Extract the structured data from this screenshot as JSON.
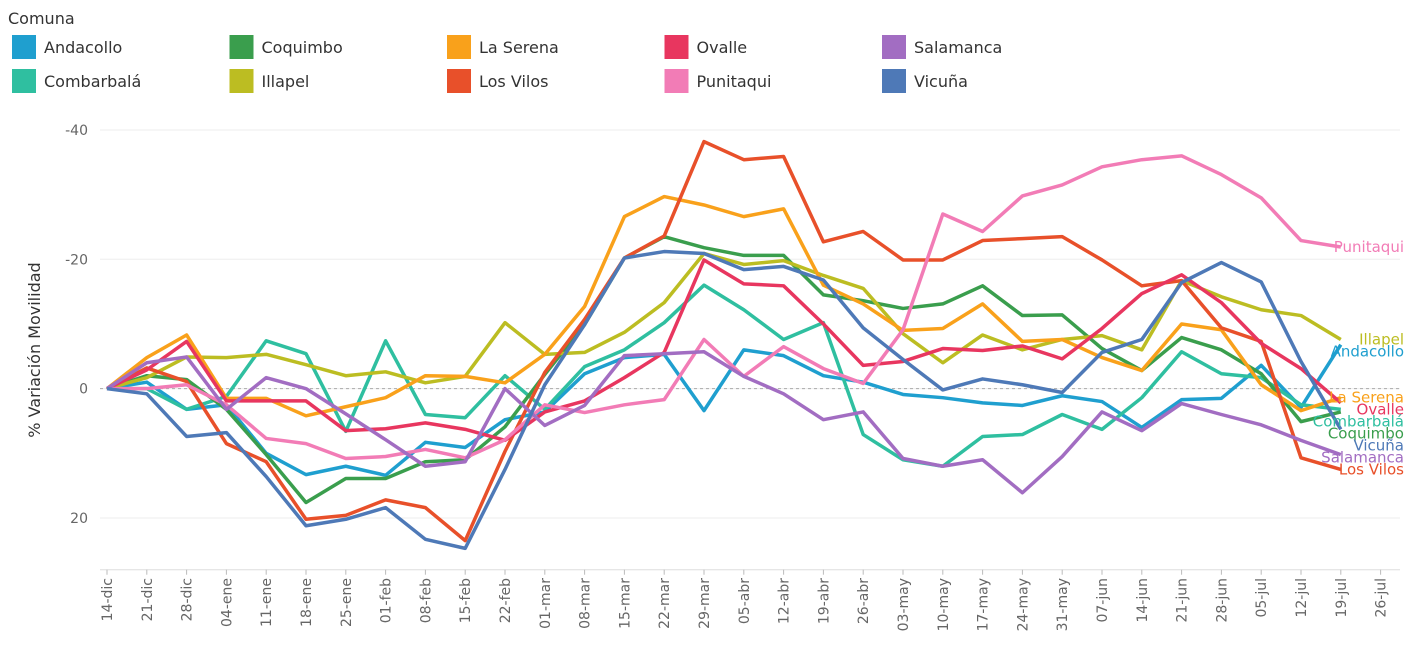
{
  "chart_data": {
    "type": "line",
    "legend_title": "Comuna",
    "y_label": "% Variación Movilidad",
    "ylim": [
      -41,
      28
    ],
    "y_inverted": true,
    "yticks": [
      -40,
      -20,
      0,
      20
    ],
    "grid": true,
    "zero_line": true,
    "end_labels": true,
    "categories": [
      "14-dic",
      "21-dic",
      "28-dic",
      "04-ene",
      "11-ene",
      "18-ene",
      "25-ene",
      "01-feb",
      "08-feb",
      "15-feb",
      "22-feb",
      "01-mar",
      "08-mar",
      "15-mar",
      "22-mar",
      "29-mar",
      "05-abr",
      "12-abr",
      "19-abr",
      "26-abr",
      "03-may",
      "10-may",
      "17-may",
      "24-may",
      "31-may",
      "07-jun",
      "14-jun",
      "21-jun",
      "28-jun",
      "05-jul",
      "12-jul",
      "19-jul",
      "26-jul"
    ],
    "series": [
      {
        "name": "Andacollo",
        "color": "#1f9fcf",
        "values": [
          0,
          -1,
          3.2,
          2.5,
          10,
          13.3,
          12,
          13.4,
          8.3,
          9.1,
          4.8,
          3.6,
          -2.3,
          -4.8,
          -5.3,
          3.4,
          -6,
          -5.1,
          -2,
          -1,
          0.9,
          1.4,
          2.2,
          2.6,
          1.1,
          2,
          6,
          1.7,
          1.5,
          -3.6,
          2.9,
          -6.8,
          null
        ]
      },
      {
        "name": "Combarbalá",
        "color": "#2fbfa0",
        "values": [
          0,
          0,
          3.2,
          1.2,
          -7.4,
          -5.4,
          6.6,
          -7.4,
          4,
          4.5,
          -2,
          3.2,
          -3.4,
          -6,
          -10.2,
          -16,
          -12.2,
          -7.6,
          -10.2,
          7.1,
          11,
          12,
          7.4,
          7.1,
          4,
          6.3,
          1.4,
          -5.7,
          -2.3,
          -1.7,
          2.5,
          3.2,
          null
        ]
      },
      {
        "name": "Coquimbo",
        "color": "#3a9e4d",
        "values": [
          0,
          -2,
          -1.4,
          3.2,
          10.2,
          17.6,
          13.9,
          13.9,
          11.3,
          11,
          5.9,
          -2.2,
          -9.9,
          -20.2,
          -23.5,
          -21.8,
          -20.6,
          -20.6,
          -14.5,
          -13.6,
          -12.4,
          -13.1,
          -15.9,
          -11.3,
          -11.4,
          -6.2,
          -2.8,
          -7.9,
          -6,
          -2.3,
          5.1,
          3.6,
          null
        ]
      },
      {
        "name": "Illapel",
        "color": "#bcbd22",
        "values": [
          0,
          -1.7,
          -4.9,
          -4.8,
          -5.3,
          -3.7,
          -2,
          -2.6,
          -0.9,
          -1.9,
          -10.2,
          -5.3,
          -5.6,
          -8.7,
          -13.3,
          -20.9,
          -19.2,
          -19.8,
          -17.5,
          -15.5,
          -8.5,
          -4,
          -8.3,
          -6,
          -7.6,
          -8.2,
          -6,
          -16.7,
          -14.2,
          -12.2,
          -11.3,
          -7.6,
          null
        ]
      },
      {
        "name": "La Serena",
        "color": "#f9a11b",
        "values": [
          0,
          -4.8,
          -8.3,
          1.5,
          1.5,
          4.2,
          2.8,
          1.4,
          -2,
          -1.9,
          -0.9,
          -5.3,
          -12.7,
          -26.6,
          -29.7,
          -28.4,
          -26.6,
          -27.8,
          -16,
          -13.1,
          -9,
          -9.3,
          -13.1,
          -7.3,
          -7.6,
          -4.8,
          -2.8,
          -10,
          -9.1,
          -0.6,
          3.4,
          1.4,
          null
        ]
      },
      {
        "name": "Los Vilos",
        "color": "#e8502a",
        "values": [
          0,
          -3.2,
          -1.1,
          8.5,
          11.3,
          20.2,
          19.6,
          17.2,
          18.4,
          23.5,
          9.7,
          -2.5,
          -10.7,
          -20.2,
          -23.6,
          -38.2,
          -35.4,
          -35.9,
          -22.7,
          -24.3,
          -19.9,
          -19.9,
          -22.9,
          -23.2,
          -23.5,
          -19.9,
          -15.9,
          -16.7,
          -9.4,
          -7.3,
          10.7,
          12.5,
          null
        ]
      },
      {
        "name": "Ovalle",
        "color": "#e8365f",
        "values": [
          0,
          -2.9,
          -7.3,
          1.9,
          1.9,
          1.9,
          6.5,
          6.2,
          5.3,
          6.3,
          8,
          3.6,
          1.9,
          -1.7,
          -5.6,
          -19.9,
          -16.2,
          -15.9,
          -10,
          -3.6,
          -4.2,
          -6.2,
          -5.9,
          -6.6,
          -4.6,
          -9.3,
          -14.7,
          -17.6,
          -13.3,
          -7,
          -3.1,
          2.2,
          null
        ]
      },
      {
        "name": "Punitaqui",
        "color": "#f27cb6",
        "values": [
          0,
          0,
          -0.6,
          2.5,
          7.7,
          8.5,
          10.8,
          10.5,
          9.4,
          10.7,
          7.9,
          2.5,
          3.7,
          2.5,
          1.7,
          -7.6,
          -1.9,
          -6.5,
          -3.1,
          -0.8,
          -9.1,
          -27,
          -24.3,
          -29.8,
          -31.5,
          -34.3,
          -35.4,
          -36,
          -33.1,
          -29.5,
          -22.9,
          -21.9,
          null
        ]
      },
      {
        "name": "Salamanca",
        "color": "#a26dc2",
        "values": [
          0,
          -4,
          -4.9,
          3.2,
          -1.7,
          0,
          3.9,
          7.9,
          12,
          11.3,
          0,
          5.7,
          2.6,
          -5.1,
          -5.4,
          -5.7,
          -1.9,
          0.8,
          4.8,
          3.6,
          10.8,
          12,
          11,
          16.1,
          10.5,
          3.6,
          6.5,
          2.3,
          4,
          5.6,
          8,
          10.2,
          null
        ]
      },
      {
        "name": "Vicuña",
        "color": "#4e79b7",
        "values": [
          0,
          0.8,
          7.4,
          6.8,
          13.6,
          21.2,
          20.2,
          18.4,
          23.3,
          24.7,
          12.5,
          -0.6,
          -9.9,
          -20.2,
          -21.2,
          -20.9,
          -18.4,
          -18.9,
          -16.8,
          -9.4,
          -4.5,
          0.2,
          -1.5,
          -0.6,
          0.6,
          -5.6,
          -7.6,
          -16.4,
          -19.5,
          -16.5,
          -4.2,
          6.3,
          null
        ]
      }
    ]
  }
}
